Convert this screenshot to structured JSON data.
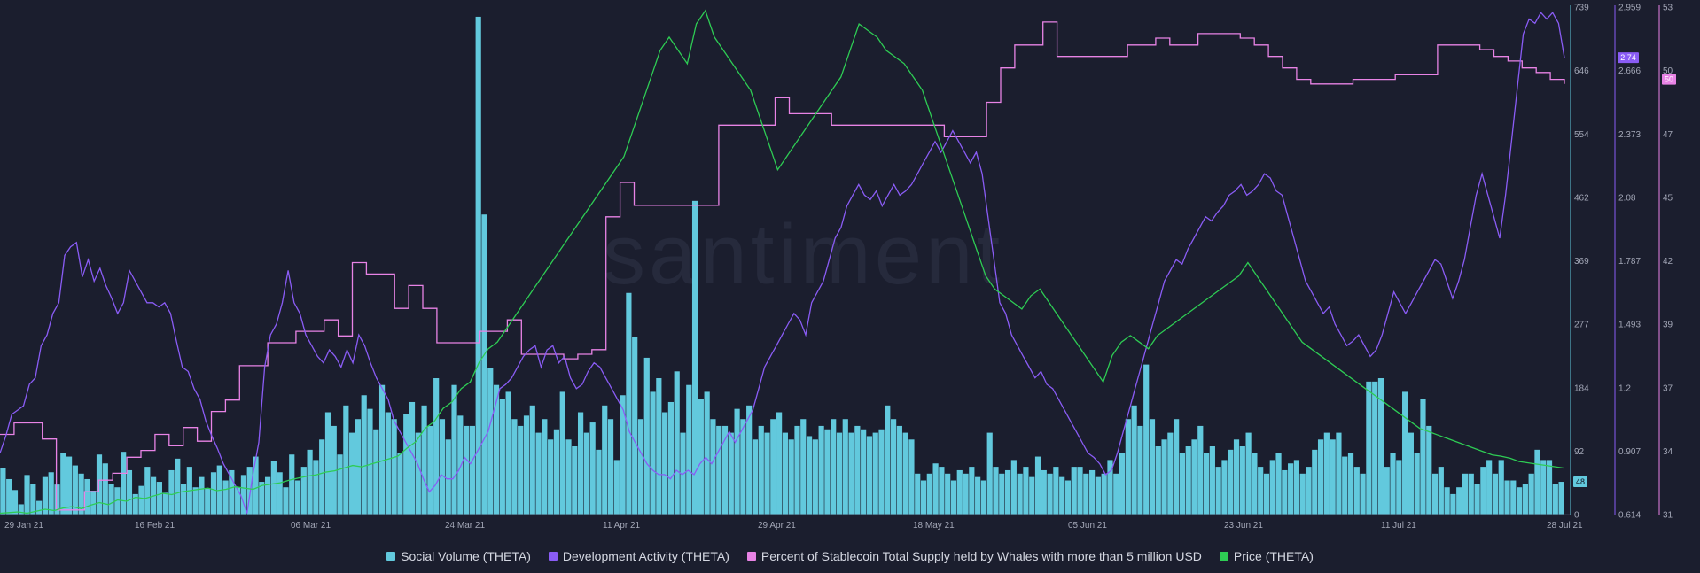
{
  "chart_data": {
    "type": "line",
    "watermark": "santiment",
    "x_ticks": [
      "29 Jan 21",
      "16 Feb 21",
      "06 Mar 21",
      "24 Mar 21",
      "11 Apr 21",
      "29 Apr 21",
      "18 May 21",
      "05 Jun 21",
      "23 Jun 21",
      "11 Jul 21",
      "28 Jul 21"
    ],
    "axes": {
      "social": {
        "ticks": [
          "739",
          "646",
          "554",
          "462",
          "369",
          "277",
          "184",
          "92",
          "0"
        ],
        "range": [
          0,
          739
        ],
        "color": "#62c9dd"
      },
      "dev": {
        "ticks": [
          "2.959",
          "2.666",
          "2.373",
          "2.08",
          "1.787",
          "1.493",
          "1.2",
          "0.907",
          "0.614"
        ],
        "range": [
          0.614,
          2.959
        ],
        "color": "#8a5cf5"
      },
      "whale": {
        "ticks": [
          "53",
          "50",
          "47",
          "45",
          "42",
          "39",
          "37",
          "34",
          "31"
        ],
        "range": [
          31,
          53
        ],
        "color": "#e883e5"
      }
    },
    "badges": {
      "social": "48",
      "dev": "2.74",
      "whale": "50"
    },
    "series": [
      {
        "key": "social",
        "name": "Social Volume (THETA)",
        "kind": "bar",
        "axis": "social",
        "color": "#62c9dd",
        "values": [
          68,
          52,
          36,
          15,
          58,
          45,
          20,
          55,
          62,
          44,
          90,
          85,
          72,
          60,
          52,
          35,
          88,
          75,
          45,
          40,
          92,
          65,
          30,
          42,
          70,
          55,
          48,
          32,
          65,
          82,
          45,
          70,
          40,
          55,
          38,
          62,
          72,
          50,
          65,
          40,
          58,
          70,
          85,
          48,
          55,
          78,
          62,
          40,
          88,
          50,
          70,
          95,
          80,
          110,
          150,
          130,
          88,
          160,
          120,
          140,
          175,
          155,
          125,
          190,
          150,
          140,
          90,
          148,
          165,
          120,
          160,
          130,
          200,
          140,
          110,
          190,
          145,
          130,
          130,
          730,
          440,
          215,
          190,
          170,
          180,
          140,
          130,
          145,
          160,
          120,
          140,
          110,
          125,
          180,
          110,
          100,
          150,
          120,
          135,
          95,
          160,
          140,
          80,
          175,
          325,
          260,
          140,
          230,
          180,
          200,
          150,
          165,
          210,
          120,
          190,
          460,
          170,
          180,
          140,
          130,
          130,
          120,
          155,
          140,
          160,
          110,
          130,
          120,
          140,
          150,
          120,
          110,
          130,
          140,
          115,
          110,
          130,
          125,
          140,
          120,
          140,
          120,
          130,
          125,
          115,
          120,
          125,
          160,
          140,
          130,
          120,
          110,
          60,
          50,
          60,
          75,
          70,
          60,
          50,
          65,
          60,
          70,
          55,
          50,
          120,
          70,
          60,
          65,
          80,
          60,
          70,
          55,
          85,
          65,
          60,
          70,
          55,
          50,
          70,
          70,
          60,
          65,
          55,
          60,
          80,
          60,
          90,
          140,
          160,
          130,
          220,
          140,
          100,
          110,
          120,
          140,
          90,
          100,
          110,
          130,
          90,
          100,
          70,
          80,
          95,
          110,
          100,
          120,
          90,
          70,
          60,
          80,
          90,
          65,
          75,
          80,
          60,
          70,
          95,
          110,
          120,
          110,
          120,
          85,
          90,
          70,
          60,
          195,
          195,
          200,
          70,
          90,
          80,
          180,
          120,
          90,
          170,
          130,
          60,
          70,
          40,
          30,
          40,
          60,
          60,
          45,
          70,
          80,
          60,
          80,
          50,
          50,
          40,
          45,
          60,
          95,
          80,
          80,
          45,
          48
        ]
      },
      {
        "key": "dev",
        "name": "Development Activity (THETA)",
        "kind": "line",
        "axis": "dev",
        "color": "#8a5cf5",
        "values": [
          0.9,
          0.98,
          1.08,
          1.1,
          1.12,
          1.22,
          1.25,
          1.4,
          1.45,
          1.55,
          1.6,
          1.82,
          1.86,
          1.88,
          1.72,
          1.8,
          1.7,
          1.76,
          1.68,
          1.62,
          1.55,
          1.6,
          1.75,
          1.7,
          1.65,
          1.6,
          1.6,
          1.58,
          1.6,
          1.55,
          1.42,
          1.3,
          1.28,
          1.2,
          1.15,
          1.05,
          0.98,
          0.92,
          0.85,
          0.8,
          0.75,
          0.7,
          0.62,
          0.8,
          0.95,
          1.3,
          1.45,
          1.5,
          1.6,
          1.75,
          1.6,
          1.55,
          1.45,
          1.4,
          1.35,
          1.32,
          1.38,
          1.35,
          1.3,
          1.38,
          1.32,
          1.45,
          1.4,
          1.32,
          1.25,
          1.2,
          1.15,
          1.05,
          1.0,
          0.95,
          0.9,
          0.85,
          0.78,
          0.72,
          0.75,
          0.8,
          0.78,
          0.78,
          0.82,
          0.88,
          0.85,
          0.9,
          0.95,
          1.0,
          1.1,
          1.2,
          1.22,
          1.25,
          1.3,
          1.35,
          1.38,
          1.4,
          1.3,
          1.38,
          1.4,
          1.32,
          1.35,
          1.25,
          1.2,
          1.22,
          1.28,
          1.32,
          1.3,
          1.25,
          1.2,
          1.15,
          1.1,
          1.0,
          0.95,
          0.9,
          0.85,
          0.82,
          0.8,
          0.8,
          0.78,
          0.82,
          0.8,
          0.82,
          0.8,
          0.85,
          0.88,
          0.85,
          0.9,
          0.95,
          1.0,
          0.95,
          1.0,
          1.05,
          1.1,
          1.2,
          1.3,
          1.35,
          1.4,
          1.45,
          1.5,
          1.55,
          1.52,
          1.45,
          1.6,
          1.65,
          1.7,
          1.8,
          1.9,
          1.95,
          2.05,
          2.1,
          2.15,
          2.1,
          2.08,
          2.12,
          2.05,
          2.1,
          2.15,
          2.1,
          2.12,
          2.15,
          2.2,
          2.25,
          2.3,
          2.35,
          2.3,
          2.35,
          2.4,
          2.35,
          2.3,
          2.25,
          2.3,
          2.2,
          2.0,
          1.8,
          1.6,
          1.55,
          1.45,
          1.4,
          1.35,
          1.3,
          1.25,
          1.28,
          1.22,
          1.2,
          1.15,
          1.1,
          1.05,
          1.0,
          0.95,
          0.9,
          0.88,
          0.85,
          0.8,
          0.82,
          0.9,
          1.0,
          1.1,
          1.2,
          1.3,
          1.4,
          1.5,
          1.6,
          1.7,
          1.75,
          1.8,
          1.78,
          1.85,
          1.9,
          1.95,
          2.0,
          1.98,
          2.02,
          2.05,
          2.1,
          2.12,
          2.15,
          2.1,
          2.12,
          2.15,
          2.2,
          2.18,
          2.12,
          2.1,
          2.0,
          1.9,
          1.8,
          1.7,
          1.65,
          1.6,
          1.55,
          1.58,
          1.5,
          1.45,
          1.4,
          1.42,
          1.45,
          1.4,
          1.35,
          1.38,
          1.45,
          1.55,
          1.65,
          1.6,
          1.55,
          1.6,
          1.65,
          1.7,
          1.75,
          1.8,
          1.78,
          1.7,
          1.62,
          1.7,
          1.8,
          1.95,
          2.1,
          2.2,
          2.1,
          2.0,
          1.9,
          2.1,
          2.35,
          2.6,
          2.85,
          2.92,
          2.9,
          2.95,
          2.92,
          2.95,
          2.9,
          2.74
        ]
      },
      {
        "key": "whale",
        "name": "Percent of Stablecoin Total Supply held by Whales with more than 5 million USD",
        "kind": "step",
        "axis": "whale",
        "color": "#e883e5",
        "values": [
          34.5,
          35.0,
          35.0,
          34.3,
          31.2,
          31.2,
          32.0,
          32.5,
          32.8,
          33.5,
          33.8,
          34.5,
          34.0,
          34.8,
          34.2,
          35.5,
          36.0,
          37.5,
          37.5,
          38.5,
          38.5,
          39.0,
          39.0,
          39.5,
          38.8,
          42.0,
          41.5,
          41.5,
          40.0,
          41.0,
          40.0,
          38.5,
          38.5,
          38.5,
          39.0,
          39.0,
          39.5,
          38.0,
          38.0,
          38.0,
          37.8,
          38.0,
          38.2,
          44.0,
          45.5,
          44.5,
          44.5,
          44.5,
          44.5,
          44.5,
          44.5,
          48.0,
          48.0,
          48.0,
          48.0,
          49.2,
          48.5,
          48.5,
          48.5,
          48.0,
          48.0,
          48.0,
          48.0,
          48.0,
          48.0,
          48.0,
          48.0,
          47.5,
          47.5,
          47.5,
          49.0,
          50.5,
          51.5,
          51.5,
          52.5,
          51.0,
          51.0,
          51.0,
          51.0,
          51.0,
          51.5,
          51.5,
          51.8,
          51.5,
          51.5,
          52.0,
          52.0,
          52.0,
          51.8,
          51.5,
          51.0,
          50.5,
          50.0,
          49.8,
          49.8,
          49.8,
          50.0,
          50.0,
          50.0,
          50.2,
          50.2,
          50.2,
          51.5,
          51.5,
          51.5,
          51.3,
          51.0,
          50.8,
          50.5,
          50.3,
          50.0,
          49.8
        ]
      },
      {
        "key": "price",
        "name": "Price (THETA)",
        "kind": "line",
        "color": "#2ecc54",
        "values": [
          2,
          3,
          4,
          2,
          5,
          8,
          6,
          10,
          12,
          9,
          14,
          18,
          15,
          22,
          20,
          26,
          24,
          28,
          32,
          30,
          34,
          36,
          38,
          40,
          36,
          38,
          42,
          40,
          38,
          44,
          46,
          48,
          52,
          55,
          58,
          60,
          64,
          66,
          70,
          74,
          72,
          76,
          80,
          84,
          88,
          100,
          110,
          130,
          140,
          160,
          170,
          190,
          200,
          230,
          250,
          260,
          280,
          300,
          320,
          340,
          360,
          380,
          400,
          420,
          440,
          460,
          480,
          500,
          520,
          540,
          580,
          620,
          660,
          700,
          720,
          700,
          680,
          740,
          760,
          720,
          700,
          680,
          660,
          640,
          600,
          560,
          520,
          540,
          560,
          580,
          600,
          620,
          640,
          660,
          700,
          740,
          730,
          720,
          700,
          690,
          680,
          660,
          640,
          600,
          560,
          520,
          480,
          440,
          400,
          360,
          340,
          330,
          320,
          310,
          330,
          340,
          320,
          300,
          280,
          260,
          240,
          220,
          200,
          240,
          260,
          270,
          260,
          250,
          270,
          280,
          290,
          300,
          310,
          320,
          330,
          340,
          350,
          360,
          380,
          360,
          340,
          320,
          300,
          280,
          260,
          250,
          240,
          230,
          220,
          210,
          200,
          190,
          180,
          170,
          160,
          150,
          140,
          130,
          125,
          120,
          115,
          110,
          105,
          100,
          95,
          90,
          88,
          85,
          80,
          78,
          76,
          74,
          72,
          70
        ]
      }
    ]
  }
}
